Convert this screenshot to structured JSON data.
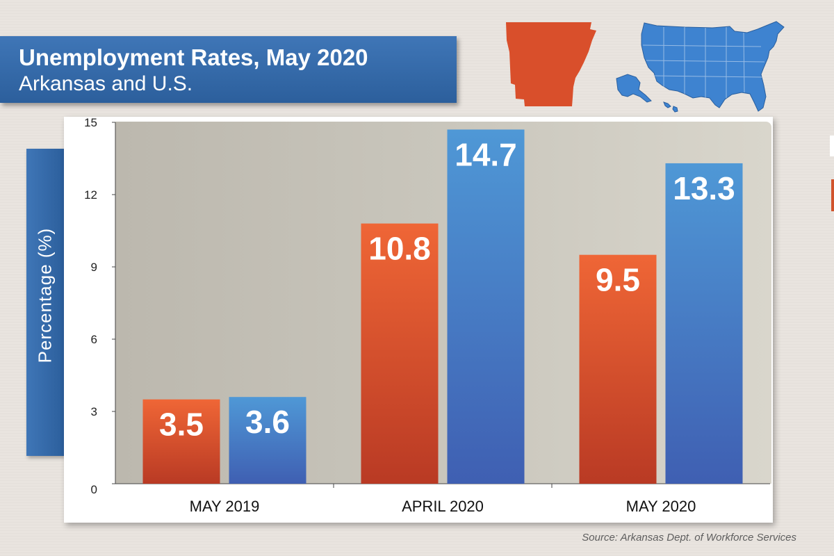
{
  "title": "Unemployment Rates, May 2020",
  "subtitle": "Arkansas and U.S.",
  "source": "Source: Arkansas Dept. of Workforce Services",
  "colors": {
    "arkansas": "#e4572e",
    "us": "#4a86c8",
    "header": "#3469a8"
  },
  "icons": {
    "arkansas_map": "arkansas-state-map-icon",
    "us_map": "us-map-icon"
  },
  "chart_data": {
    "type": "bar",
    "title": "Unemployment Rates, May 2020",
    "subtitle": "Arkansas and U.S.",
    "ylabel": "Percentage (%)",
    "xlabel": "",
    "categories": [
      "MAY 2019",
      "APRIL 2020",
      "MAY 2020"
    ],
    "series": [
      {
        "color": "#e4572e",
        "values": [
          3.5,
          10.8,
          9.5
        ]
      },
      {
        "color": "#4a86c8",
        "values": [
          3.6,
          14.7,
          13.3
        ]
      }
    ],
    "yticks": [
      0,
      3,
      6,
      9,
      12,
      15
    ],
    "ylim": [
      0,
      15
    ],
    "grid": false,
    "data_labels": true
  }
}
